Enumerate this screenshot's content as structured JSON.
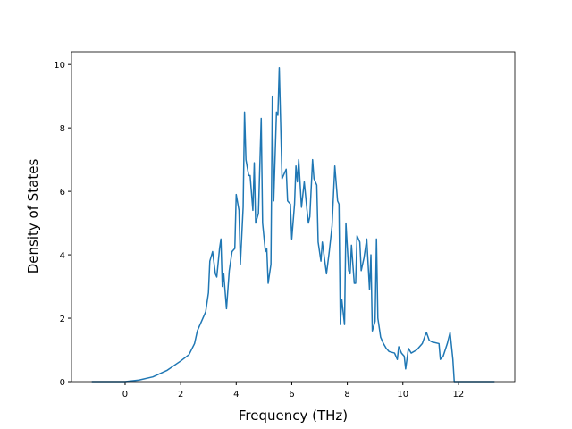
{
  "chart_data": {
    "type": "line",
    "xlabel": "Frequency (THz)",
    "ylabel": "Density of States",
    "x": [
      -1.2,
      0,
      0.5,
      1,
      1.5,
      2,
      2.3,
      2.5,
      2.6,
      2.8,
      2.9,
      3.0,
      3.05,
      3.15,
      3.25,
      3.3,
      3.4,
      3.45,
      3.5,
      3.55,
      3.65,
      3.75,
      3.85,
      3.95,
      4.0,
      4.1,
      4.15,
      4.25,
      4.3,
      4.35,
      4.45,
      4.5,
      4.6,
      4.65,
      4.7,
      4.8,
      4.9,
      4.95,
      5.05,
      5.1,
      5.15,
      5.25,
      5.3,
      5.35,
      5.45,
      5.5,
      5.55,
      5.65,
      5.8,
      5.85,
      5.95,
      6.0,
      6.1,
      6.15,
      6.2,
      6.25,
      6.35,
      6.45,
      6.55,
      6.6,
      6.65,
      6.75,
      6.8,
      6.9,
      6.95,
      7.05,
      7.1,
      7.25,
      7.35,
      7.45,
      7.55,
      7.65,
      7.7,
      7.75,
      7.8,
      7.9,
      7.95,
      8.05,
      8.1,
      8.15,
      8.25,
      8.3,
      8.35,
      8.45,
      8.5,
      8.6,
      8.7,
      8.8,
      8.85,
      8.9,
      9.0,
      9.05,
      9.1,
      9.2,
      9.3,
      9.4,
      9.5,
      9.7,
      9.8,
      9.85,
      9.95,
      10.05,
      10.1,
      10.2,
      10.3,
      10.5,
      10.7,
      10.8,
      10.85,
      10.95,
      11.05,
      11.3,
      11.35,
      11.45,
      11.6,
      11.7,
      11.8,
      11.85,
      13.3
    ],
    "series": [
      {
        "name": "DOS",
        "color": "#1f77b4",
        "values": [
          0,
          0,
          0.05,
          0.15,
          0.35,
          0.65,
          0.85,
          1.2,
          1.6,
          2.0,
          2.2,
          2.8,
          3.8,
          4.1,
          3.4,
          3.3,
          4.2,
          4.5,
          3.0,
          3.4,
          2.3,
          3.5,
          4.1,
          4.2,
          5.9,
          5.4,
          3.7,
          5.5,
          8.5,
          7.0,
          6.5,
          6.5,
          5.4,
          6.9,
          5.0,
          5.3,
          8.3,
          5.0,
          4.1,
          4.2,
          3.1,
          3.7,
          9.0,
          5.7,
          8.5,
          8.4,
          9.9,
          6.4,
          6.7,
          5.7,
          5.6,
          4.5,
          5.6,
          6.8,
          6.3,
          7.0,
          5.5,
          6.3,
          5.4,
          5.0,
          5.2,
          7.0,
          6.4,
          6.2,
          4.4,
          3.8,
          4.4,
          3.4,
          4.1,
          4.9,
          6.8,
          5.7,
          5.6,
          1.8,
          2.6,
          1.8,
          5.0,
          3.5,
          3.4,
          4.3,
          3.1,
          3.1,
          4.6,
          4.4,
          3.5,
          3.9,
          4.5,
          2.9,
          4.0,
          1.6,
          1.9,
          4.5,
          2.0,
          1.4,
          1.2,
          1.05,
          0.95,
          0.9,
          0.7,
          1.1,
          0.9,
          0.8,
          0.4,
          1.05,
          0.9,
          1.0,
          1.2,
          1.45,
          1.55,
          1.3,
          1.25,
          1.2,
          0.7,
          0.8,
          1.2,
          1.55,
          0.7,
          0,
          0
        ]
      }
    ],
    "xlim": [
      -1.93,
      14.03
    ],
    "ylim": [
      0,
      10.4
    ],
    "xticks": [
      0,
      2,
      4,
      6,
      8,
      10,
      12
    ],
    "yticks": [
      0,
      2,
      4,
      6,
      8,
      10
    ],
    "grid": false
  }
}
